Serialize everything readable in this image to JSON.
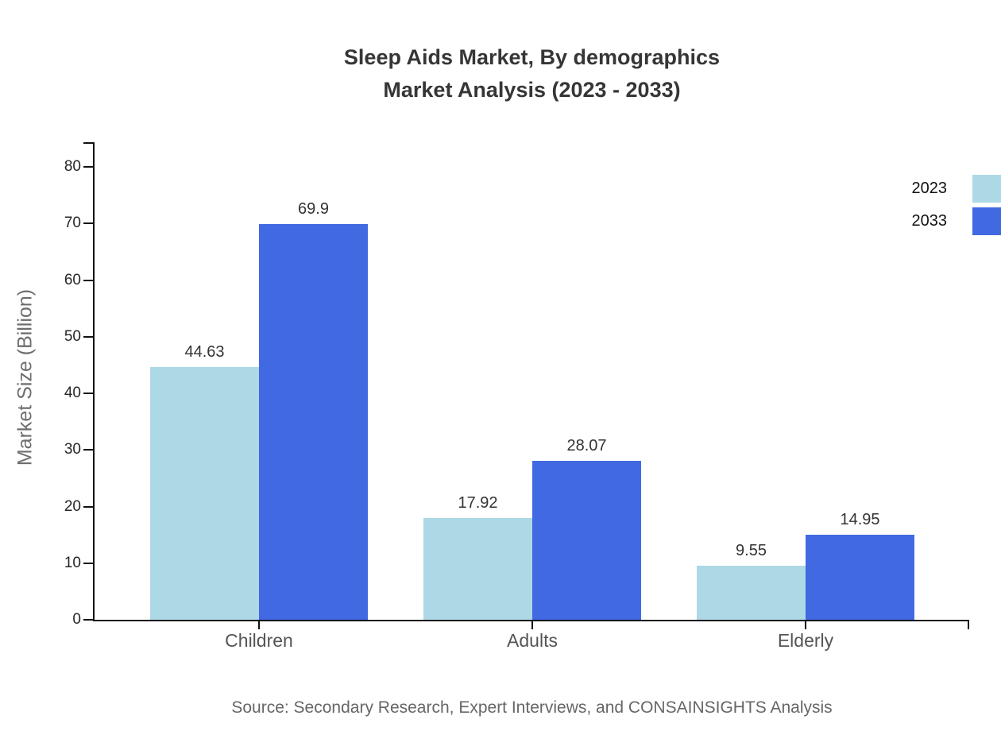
{
  "title": {
    "line1": "Sleep Aids Market, By demographics",
    "line2": "Market Analysis (2023 - 2033)"
  },
  "source": "Source: Secondary Research, Expert Interviews, and CONSAINSIGHTS Analysis",
  "chart_data": {
    "type": "bar",
    "categories": [
      "Children",
      "Adults",
      "Elderly"
    ],
    "series": [
      {
        "name": "2023",
        "color": "#ADD8E6",
        "values": [
          44.63,
          17.92,
          9.55
        ]
      },
      {
        "name": "2033",
        "color": "#4169E1",
        "values": [
          69.9,
          28.07,
          14.95
        ]
      }
    ],
    "title": "Sleep Aids Market, By demographics — Market Analysis (2023 - 2033)",
    "xlabel": "",
    "ylabel": "Market Size (Billion)",
    "yticks": [
      0,
      10,
      20,
      30,
      40,
      50,
      60,
      70,
      80
    ],
    "ylim": [
      0,
      84.3
    ],
    "grid": false,
    "bar_value_labels": true,
    "legend_position": "outside-right"
  }
}
